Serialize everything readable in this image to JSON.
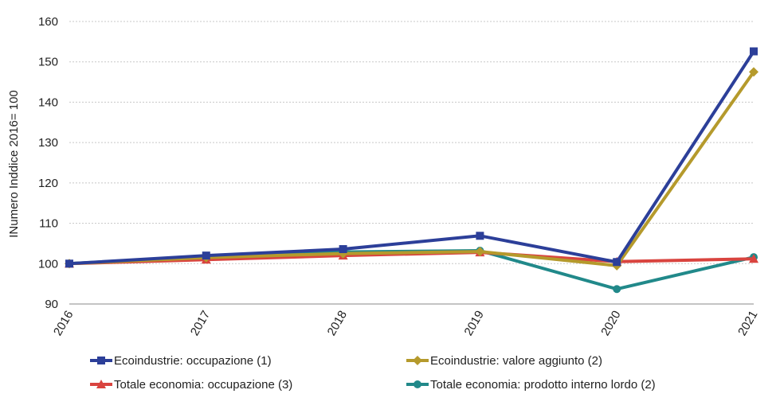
{
  "chart_data": {
    "type": "line",
    "ylabel": "INumero  Inddice 2016= 100",
    "x": [
      "2016",
      "2017",
      "2018",
      "2019",
      "2020",
      "2021"
    ],
    "ylim": [
      90,
      160
    ],
    "yticks": [
      90,
      100,
      110,
      120,
      130,
      140,
      150,
      160
    ],
    "grid": true,
    "legend_position": "bottom",
    "series": [
      {
        "name": "Ecoindustrie: occupazione (1)",
        "color": "#2c3f99",
        "marker": "square",
        "values": [
          100,
          102,
          103.6,
          106.9,
          100.4,
          152.6
        ]
      },
      {
        "name": "Ecoindustrie: valore aggiunto (2)",
        "color": "#b59a2c",
        "marker": "diamond",
        "values": [
          100,
          101.5,
          102.5,
          103,
          99.5,
          147.5
        ]
      },
      {
        "name": "Totale economia: occupazione (3)",
        "color": "#d9443f",
        "marker": "triangle",
        "values": [
          100,
          101,
          102,
          102.8,
          100.5,
          101.2
        ]
      },
      {
        "name": "Totale economia: prodotto interno lordo (2)",
        "color": "#21898a",
        "marker": "circle",
        "values": [
          100,
          101.8,
          102.9,
          103.2,
          93.7,
          101.6
        ]
      }
    ]
  }
}
